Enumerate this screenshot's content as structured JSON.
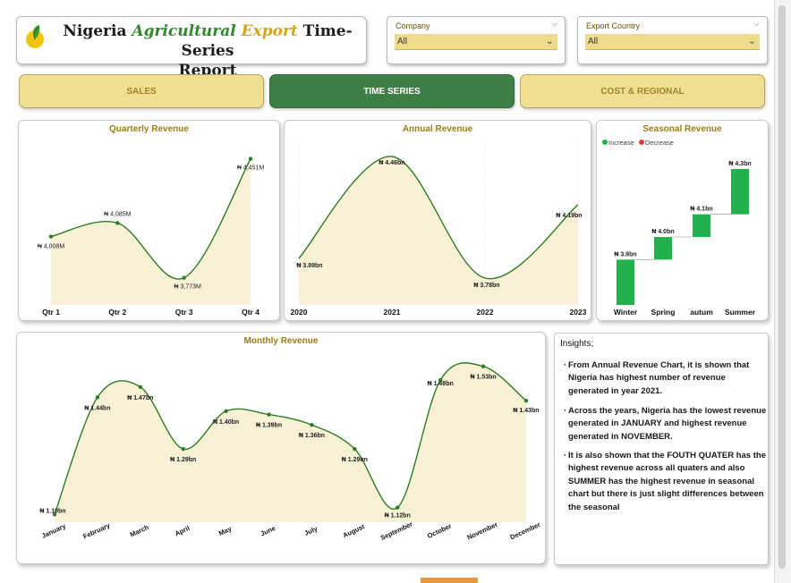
{
  "header": {
    "title_part1": "Nigeria ",
    "title_part2": "Agricultural",
    "title_part3": " Export",
    "title_part4": " Time-Series",
    "title_line2": "Report"
  },
  "filters": {
    "company_label": "Company",
    "company_value": "All",
    "country_label": "Export Country",
    "country_value": "All"
  },
  "nav": {
    "sales": "SALES",
    "time_series": "TIME SERIES",
    "cost_regional": "COST & REGIONAL"
  },
  "colors": {
    "line": "#2e7d23",
    "fill": "#f8f1d6",
    "increase": "#22b14c",
    "decrease": "#e03a3a",
    "gold_title": "#9c7d11"
  },
  "chart_data": [
    {
      "type": "area",
      "title": "Quarterly Revenue",
      "categories": [
        "Qtr 1",
        "Qtr 2",
        "Qtr 3",
        "Qtr 4"
      ],
      "values": [
        4008,
        4085,
        3773,
        4451
      ],
      "labels": [
        "₦ 4,008M",
        "₦ 4,085M",
        "₦ 3,773M",
        "₦ 4,451M"
      ],
      "ylim": [
        3700,
        4500
      ]
    },
    {
      "type": "area",
      "title": "Annual Revenue",
      "categories": [
        "2020",
        "2021",
        "2022",
        "2023"
      ],
      "values": [
        3.89,
        4.46,
        3.78,
        4.19
      ],
      "labels": [
        "₦ 3.89bn",
        "₦ 4.46bn",
        "₦ 3.78bn",
        "₦ 4.19bn"
      ],
      "ylim": [
        3.7,
        4.5
      ]
    },
    {
      "type": "bar",
      "subtype": "waterfall",
      "title": "Seasonal Revenue",
      "legend": [
        "Increase",
        "Decrease"
      ],
      "categories": [
        "Winter",
        "Spring",
        "autum",
        "Summer"
      ],
      "values": [
        3.9,
        4.0,
        4.1,
        4.3
      ],
      "labels": [
        "₦ 3.9bn",
        "₦ 4.0bn",
        "₦ 4.1bn",
        "₦ 4.3bn"
      ]
    },
    {
      "type": "area",
      "title": "Monthly Revenue",
      "categories": [
        "January",
        "February",
        "March",
        "April",
        "May",
        "June",
        "July",
        "August",
        "September",
        "October",
        "November",
        "December"
      ],
      "values": [
        1.1,
        1.44,
        1.47,
        1.29,
        1.4,
        1.39,
        1.36,
        1.29,
        1.12,
        1.49,
        1.53,
        1.43
      ],
      "labels": [
        "₦ 1.10bn",
        "₦ 1.44bn",
        "₦ 1.47bn",
        "₦ 1.29bn",
        "₦ 1.40bn",
        "₦ 1.39bn",
        "₦ 1.36bn",
        "₦ 1.29bn",
        "₦ 1.12bn",
        "₦ 1.49bn",
        "₦ 1.53bn",
        "₦ 1.43bn"
      ],
      "ylim": [
        1.08,
        1.55
      ]
    }
  ],
  "insights": {
    "heading": "Insights;",
    "items": [
      "From Annual Revenue Chart, it is shown that Nigeria has highest number of revenue generated in year 2021.",
      "Across the years, Nigeria has the lowest revenue generated in JANUARY and highest revenue generated in NOVEMBER.",
      "It is also shown that the FOUTH QUATER  has the highest revenue across all quaters and also SUMMER has the highest revenue in seasonal chart but there is just slight differences between the seasonal"
    ]
  }
}
